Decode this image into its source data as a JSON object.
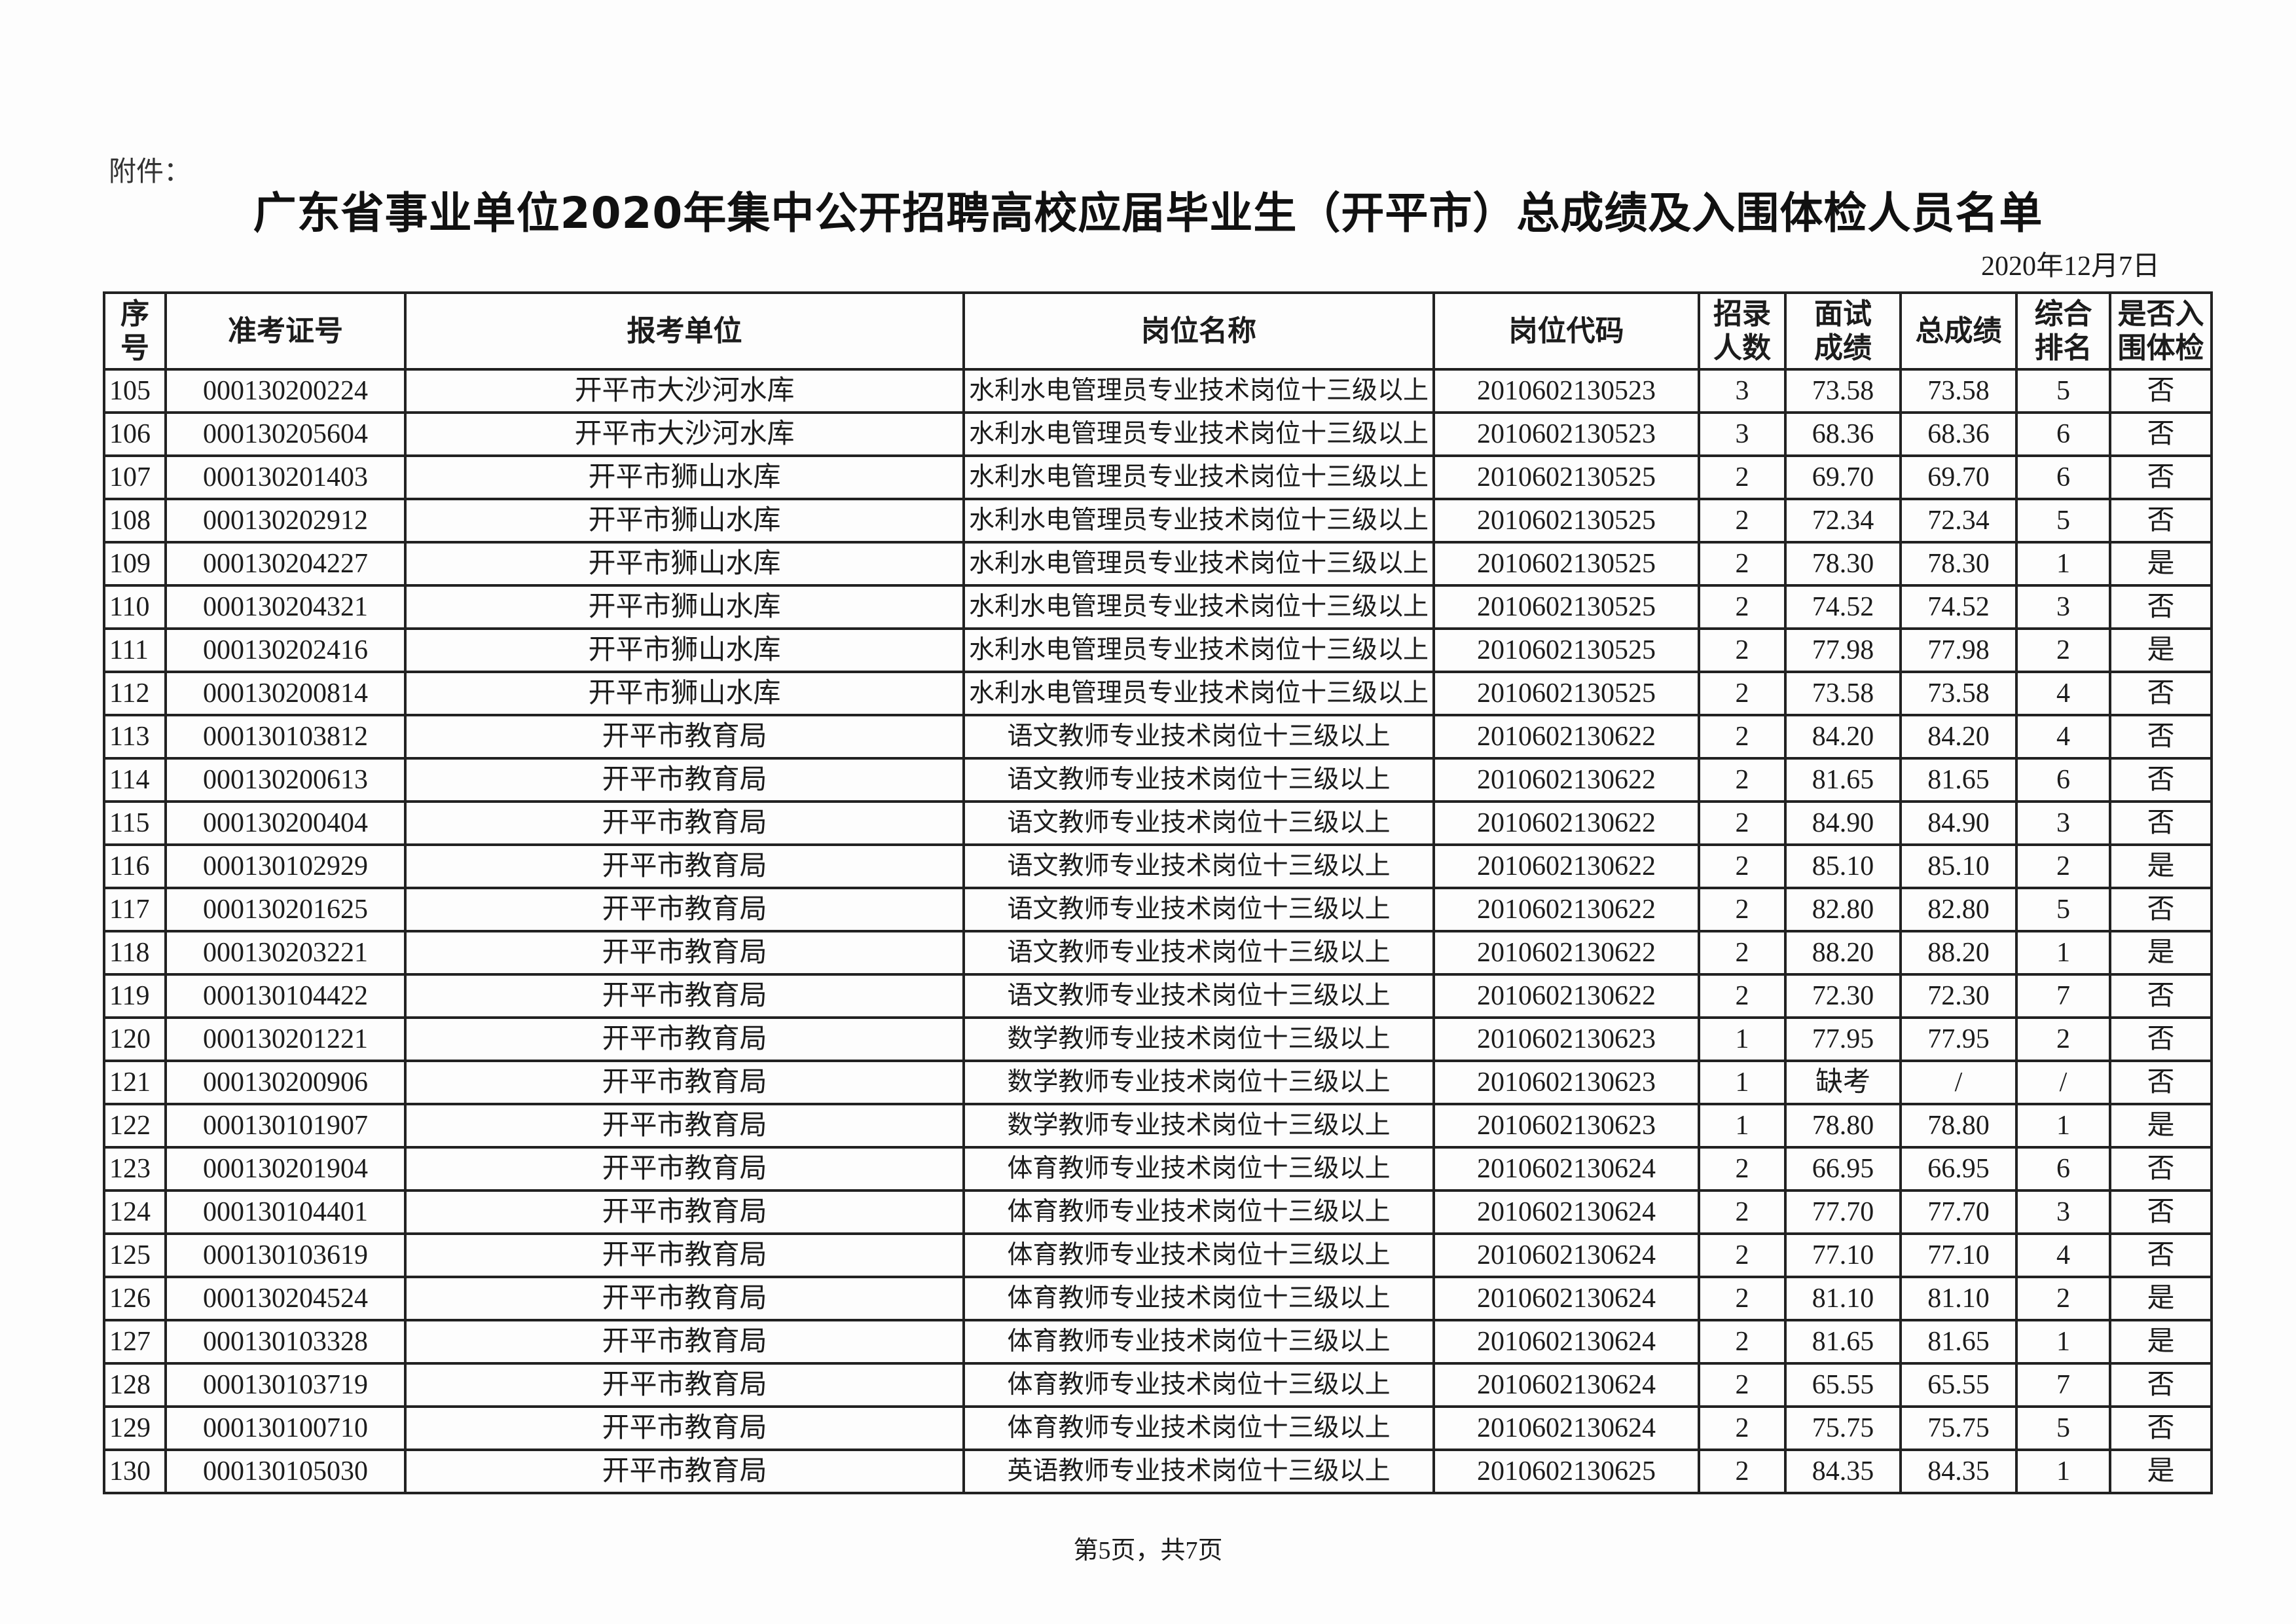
{
  "attachment_label": "附件：",
  "title": "广东省事业单位2020年集中公开招聘高校应届毕业生（开平市）总成绩及入围体检人员名单",
  "date": "2020年12月7日",
  "table": {
    "headers": [
      "序号",
      "准考证号",
      "报考单位",
      "岗位名称",
      "岗位代码",
      "招录人数",
      "面试成绩",
      "总成绩",
      "综合排名",
      "是否入围体检"
    ],
    "rows": [
      [
        "105",
        "000130200224",
        "开平市大沙河水库",
        "水利水电管理员专业技术岗位十三级以上",
        "2010602130523",
        "3",
        "73.58",
        "73.58",
        "5",
        "否"
      ],
      [
        "106",
        "000130205604",
        "开平市大沙河水库",
        "水利水电管理员专业技术岗位十三级以上",
        "2010602130523",
        "3",
        "68.36",
        "68.36",
        "6",
        "否"
      ],
      [
        "107",
        "000130201403",
        "开平市狮山水库",
        "水利水电管理员专业技术岗位十三级以上",
        "2010602130525",
        "2",
        "69.70",
        "69.70",
        "6",
        "否"
      ],
      [
        "108",
        "000130202912",
        "开平市狮山水库",
        "水利水电管理员专业技术岗位十三级以上",
        "2010602130525",
        "2",
        "72.34",
        "72.34",
        "5",
        "否"
      ],
      [
        "109",
        "000130204227",
        "开平市狮山水库",
        "水利水电管理员专业技术岗位十三级以上",
        "2010602130525",
        "2",
        "78.30",
        "78.30",
        "1",
        "是"
      ],
      [
        "110",
        "000130204321",
        "开平市狮山水库",
        "水利水电管理员专业技术岗位十三级以上",
        "2010602130525",
        "2",
        "74.52",
        "74.52",
        "3",
        "否"
      ],
      [
        "111",
        "000130202416",
        "开平市狮山水库",
        "水利水电管理员专业技术岗位十三级以上",
        "2010602130525",
        "2",
        "77.98",
        "77.98",
        "2",
        "是"
      ],
      [
        "112",
        "000130200814",
        "开平市狮山水库",
        "水利水电管理员专业技术岗位十三级以上",
        "2010602130525",
        "2",
        "73.58",
        "73.58",
        "4",
        "否"
      ],
      [
        "113",
        "000130103812",
        "开平市教育局",
        "语文教师专业技术岗位十三级以上",
        "2010602130622",
        "2",
        "84.20",
        "84.20",
        "4",
        "否"
      ],
      [
        "114",
        "000130200613",
        "开平市教育局",
        "语文教师专业技术岗位十三级以上",
        "2010602130622",
        "2",
        "81.65",
        "81.65",
        "6",
        "否"
      ],
      [
        "115",
        "000130200404",
        "开平市教育局",
        "语文教师专业技术岗位十三级以上",
        "2010602130622",
        "2",
        "84.90",
        "84.90",
        "3",
        "否"
      ],
      [
        "116",
        "000130102929",
        "开平市教育局",
        "语文教师专业技术岗位十三级以上",
        "2010602130622",
        "2",
        "85.10",
        "85.10",
        "2",
        "是"
      ],
      [
        "117",
        "000130201625",
        "开平市教育局",
        "语文教师专业技术岗位十三级以上",
        "2010602130622",
        "2",
        "82.80",
        "82.80",
        "5",
        "否"
      ],
      [
        "118",
        "000130203221",
        "开平市教育局",
        "语文教师专业技术岗位十三级以上",
        "2010602130622",
        "2",
        "88.20",
        "88.20",
        "1",
        "是"
      ],
      [
        "119",
        "000130104422",
        "开平市教育局",
        "语文教师专业技术岗位十三级以上",
        "2010602130622",
        "2",
        "72.30",
        "72.30",
        "7",
        "否"
      ],
      [
        "120",
        "000130201221",
        "开平市教育局",
        "数学教师专业技术岗位十三级以上",
        "2010602130623",
        "1",
        "77.95",
        "77.95",
        "2",
        "否"
      ],
      [
        "121",
        "000130200906",
        "开平市教育局",
        "数学教师专业技术岗位十三级以上",
        "2010602130623",
        "1",
        "缺考",
        "/",
        "/",
        "否"
      ],
      [
        "122",
        "000130101907",
        "开平市教育局",
        "数学教师专业技术岗位十三级以上",
        "2010602130623",
        "1",
        "78.80",
        "78.80",
        "1",
        "是"
      ],
      [
        "123",
        "000130201904",
        "开平市教育局",
        "体育教师专业技术岗位十三级以上",
        "2010602130624",
        "2",
        "66.95",
        "66.95",
        "6",
        "否"
      ],
      [
        "124",
        "000130104401",
        "开平市教育局",
        "体育教师专业技术岗位十三级以上",
        "2010602130624",
        "2",
        "77.70",
        "77.70",
        "3",
        "否"
      ],
      [
        "125",
        "000130103619",
        "开平市教育局",
        "体育教师专业技术岗位十三级以上",
        "2010602130624",
        "2",
        "77.10",
        "77.10",
        "4",
        "否"
      ],
      [
        "126",
        "000130204524",
        "开平市教育局",
        "体育教师专业技术岗位十三级以上",
        "2010602130624",
        "2",
        "81.10",
        "81.10",
        "2",
        "是"
      ],
      [
        "127",
        "000130103328",
        "开平市教育局",
        "体育教师专业技术岗位十三级以上",
        "2010602130624",
        "2",
        "81.65",
        "81.65",
        "1",
        "是"
      ],
      [
        "128",
        "000130103719",
        "开平市教育局",
        "体育教师专业技术岗位十三级以上",
        "2010602130624",
        "2",
        "65.55",
        "65.55",
        "7",
        "否"
      ],
      [
        "129",
        "000130100710",
        "开平市教育局",
        "体育教师专业技术岗位十三级以上",
        "2010602130624",
        "2",
        "75.75",
        "75.75",
        "5",
        "否"
      ],
      [
        "130",
        "000130105030",
        "开平市教育局",
        "英语教师专业技术岗位十三级以上",
        "2010602130625",
        "2",
        "84.35",
        "84.35",
        "1",
        "是"
      ]
    ]
  },
  "footer": "第5页，共7页"
}
